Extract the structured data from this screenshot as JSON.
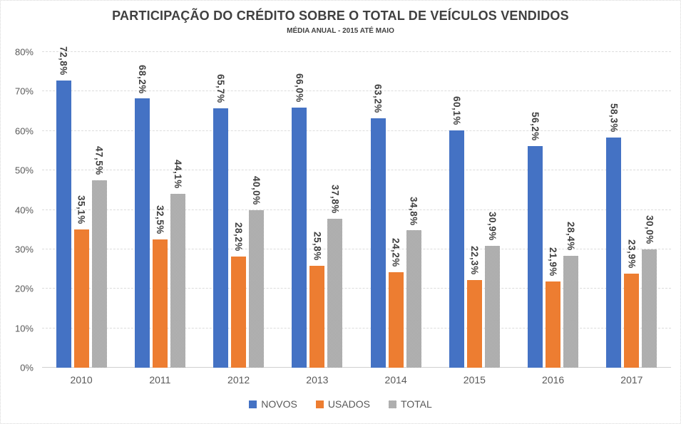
{
  "chart": {
    "title": "PARTICIPAÇÃO DO CRÉDITO SOBRE O TOTAL DE VEÍCULOS VENDIDOS",
    "subtitle": "MÉDIA ANUAL - 2015 ATÉ MAIO"
  },
  "chart_data": {
    "type": "bar",
    "title": "PARTICIPAÇÃO DO CRÉDITO SOBRE O TOTAL DE VEÍCULOS VENDIDOS",
    "subtitle": "MÉDIA ANUAL - 2015 ATÉ MAIO",
    "categories": [
      "2010",
      "2011",
      "2012",
      "2013",
      "2014",
      "2015",
      "2016",
      "2017"
    ],
    "series": [
      {
        "name": "NOVOS",
        "color": "#4472C4",
        "pattern": false,
        "values": [
          72.8,
          68.2,
          65.7,
          66.0,
          63.2,
          60.1,
          56.2,
          58.3
        ],
        "labels": [
          "72,8%",
          "68,2%",
          "65,7%",
          "66,0%",
          "63,2%",
          "60,1%",
          "56,2%",
          "58,3%"
        ]
      },
      {
        "name": "USADOS",
        "color": "#ED7D31",
        "pattern": false,
        "values": [
          35.1,
          32.5,
          28.2,
          25.8,
          24.2,
          22.3,
          21.9,
          23.9
        ],
        "labels": [
          "35,1%",
          "32,5%",
          "28,2%",
          "25,8%",
          "24,2%",
          "22,3%",
          "21,9%",
          "23,9%"
        ]
      },
      {
        "name": "TOTAL",
        "color": "#A5A5A5",
        "pattern": true,
        "values": [
          47.5,
          44.1,
          40.0,
          37.8,
          34.8,
          30.9,
          28.4,
          30.0
        ],
        "labels": [
          "47,5%",
          "44,1%",
          "40,0%",
          "37,8%",
          "34,8%",
          "30,9%",
          "28,4%",
          "30,0%"
        ]
      }
    ],
    "ylabel": "",
    "xlabel": "",
    "ylim": [
      0,
      80
    ],
    "y_ticks": [
      "0%",
      "10%",
      "20%",
      "30%",
      "40%",
      "50%",
      "60%",
      "70%",
      "80%"
    ],
    "y_tick_values": [
      0,
      10,
      20,
      30,
      40,
      50,
      60,
      70,
      80
    ],
    "grid": true,
    "legend_position": "bottom",
    "data_label_rotation": "vertical"
  }
}
